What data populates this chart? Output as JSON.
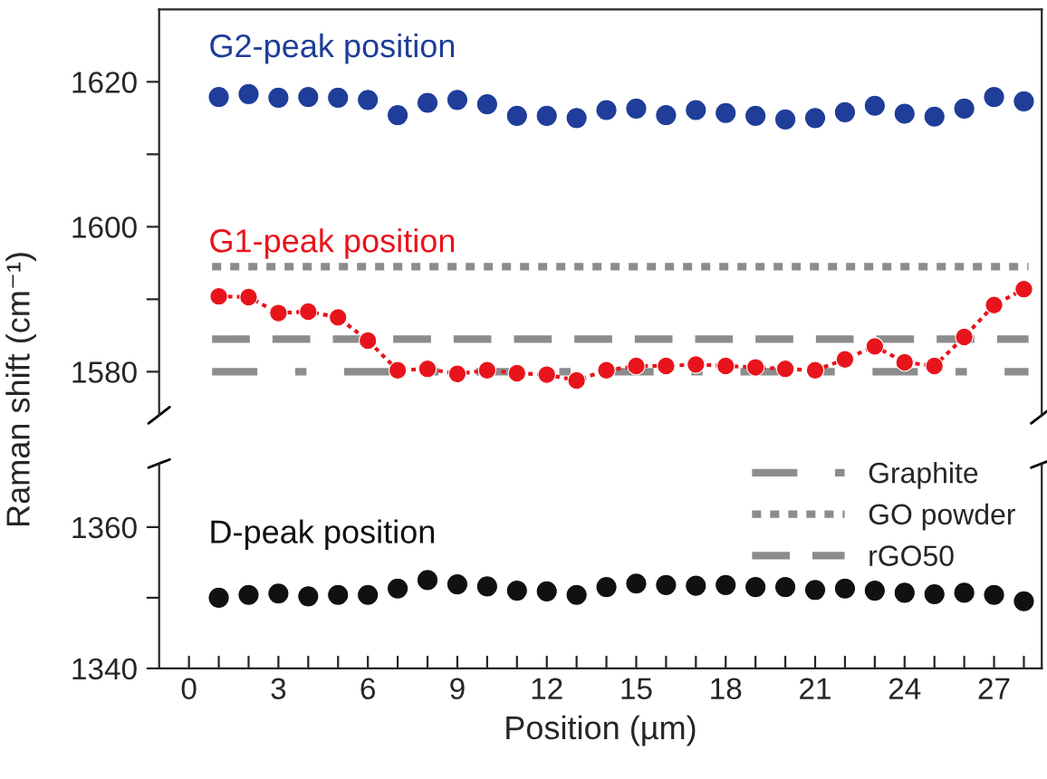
{
  "chart_data": [
    {
      "type": "scatter",
      "ylabel": "Raman shift (cm⁻¹)",
      "x": [
        1,
        2,
        3,
        4,
        5,
        6,
        7,
        8,
        9,
        10,
        11,
        12,
        13,
        14,
        15,
        16,
        17,
        18,
        19,
        20,
        21,
        22,
        23,
        24,
        25,
        26,
        27,
        28
      ],
      "xlim": [
        -1,
        28.6
      ],
      "ylim": [
        1574,
        1630
      ],
      "yticks": [
        1580,
        {
          "value": 1590,
          "label": null
        },
        1600,
        {
          "value": 1610,
          "label": null
        },
        1620
      ],
      "tick_labels": "y",
      "grid": false,
      "marker": "circle",
      "legend": "bottom right",
      "series": [
        {
          "name": "G2-peak position",
          "color": "#1f3d99",
          "values": [
            1617.9,
            1618.3,
            1617.8,
            1617.9,
            1617.8,
            1617.5,
            1615.4,
            1617.1,
            1617.5,
            1616.9,
            1615.3,
            1615.3,
            1615,
            1616.1,
            1616.3,
            1615.4,
            1616.1,
            1615.7,
            1615.3,
            1614.8,
            1615,
            1615.8,
            1616.7,
            1615.6,
            1615.2,
            1616.3,
            1617.9,
            1617.3
          ]
        },
        {
          "name": "G1-peak position",
          "type": "line",
          "line_style": "dotted",
          "color": "#e8141c",
          "values": [
            1590.4,
            1590.3,
            1588.1,
            1588.3,
            1587.5,
            1584.3,
            1580.2,
            1580.4,
            1579.7,
            1580.2,
            1579.8,
            1579.6,
            1578.8,
            1580.2,
            1580.8,
            1580.8,
            1581,
            1580.8,
            1580.6,
            1580.4,
            1580.2,
            1581.7,
            1583.5,
            1581.3,
            1580.8,
            1584.8,
            1589.2,
            1591.4
          ]
        }
      ],
      "ref_lines": [
        {
          "axis": "y",
          "value": 1580,
          "label": "Graphite",
          "color": "#8c8c8c",
          "line_style": "dashdot"
        },
        {
          "axis": "y",
          "value": 1594.5,
          "label": "GO powder",
          "color": "#8c8c8c",
          "line_style": "dotted"
        },
        {
          "axis": "y",
          "value": 1584.5,
          "label": "rGO50",
          "color": "#8c8c8c",
          "line_style": "dashed"
        }
      ]
    },
    {
      "type": "scatter",
      "xlabel": "Position (µm)",
      "x": [
        1,
        2,
        3,
        4,
        5,
        6,
        7,
        8,
        9,
        10,
        11,
        12,
        13,
        14,
        15,
        16,
        17,
        18,
        19,
        20,
        21,
        22,
        23,
        24,
        25,
        26,
        27,
        28
      ],
      "xlim": [
        -1,
        28.6
      ],
      "xticks": [
        0,
        {
          "value": 1,
          "label": null
        },
        {
          "value": 2,
          "label": null
        },
        3,
        {
          "value": 4,
          "label": null
        },
        {
          "value": 5,
          "label": null
        },
        6,
        {
          "value": 7,
          "label": null
        },
        {
          "value": 8,
          "label": null
        },
        9,
        {
          "value": 10,
          "label": null
        },
        {
          "value": 11,
          "label": null
        },
        12,
        {
          "value": 13,
          "label": null
        },
        {
          "value": 14,
          "label": null
        },
        15,
        {
          "value": 16,
          "label": null
        },
        {
          "value": 17,
          "label": null
        },
        18,
        {
          "value": 19,
          "label": null
        },
        {
          "value": 20,
          "label": null
        },
        21,
        {
          "value": 22,
          "label": null
        },
        {
          "value": 23,
          "label": null
        },
        24,
        {
          "value": 25,
          "label": null
        },
        {
          "value": 26,
          "label": null
        },
        27,
        {
          "value": 28,
          "label": null
        }
      ],
      "ylim": [
        1340,
        1369
      ],
      "yticks": [
        1340,
        {
          "value": 1350,
          "label": null
        },
        1360
      ],
      "grid": false,
      "marker": "circle",
      "series": [
        {
          "name": "D-peak position",
          "color": "#111111",
          "values": [
            1350.0,
            1350.4,
            1350.6,
            1350.2,
            1350.4,
            1350.4,
            1351.3,
            1352.5,
            1351.9,
            1351.6,
            1351.0,
            1350.9,
            1350.4,
            1351.5,
            1352.0,
            1351.8,
            1351.7,
            1351.8,
            1351.5,
            1351.5,
            1351.1,
            1351.3,
            1351.0,
            1350.7,
            1350.5,
            1350.7,
            1350.4,
            1349.5
          ]
        }
      ]
    }
  ]
}
